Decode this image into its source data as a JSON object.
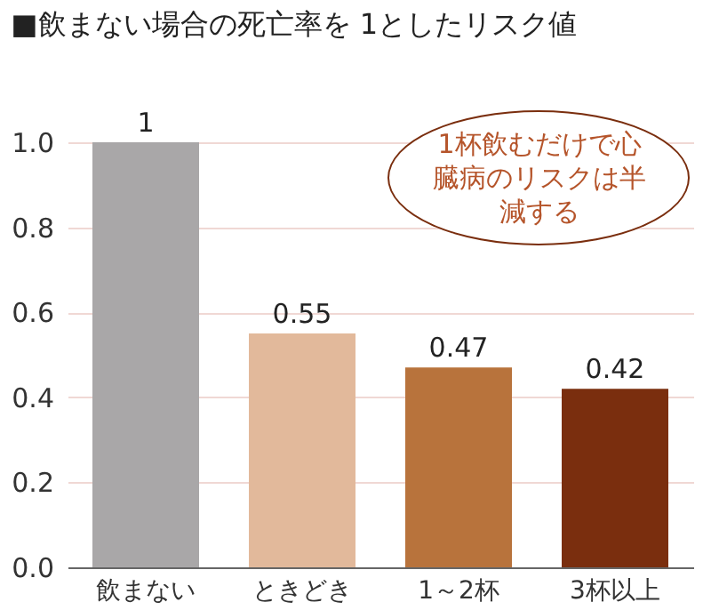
{
  "chart_data": {
    "type": "bar",
    "title": "■飲まない場合の死亡率を 1としたリスク値",
    "categories": [
      "飲まない",
      "ときどき",
      "1～2杯",
      "3杯以上"
    ],
    "values": [
      1,
      0.55,
      0.47,
      0.42
    ],
    "colors": [
      "#a9a7a8",
      "#e2b99b",
      "#b8733c",
      "#7a2e0e"
    ],
    "ylim": [
      0,
      1
    ],
    "yticks": [
      {
        "value": 0,
        "label": "0.0"
      },
      {
        "value": 0.2,
        "label": "0.2"
      },
      {
        "value": 0.4,
        "label": "0.4"
      },
      {
        "value": 0.6,
        "label": "0.6"
      },
      {
        "value": 0.8,
        "label": "0.8"
      },
      {
        "value": 1,
        "label": "1.0"
      }
    ],
    "grid": "y",
    "data_labels": true,
    "annotations": [
      "1杯飲むだけで心臓病のリスクは半減する"
    ]
  }
}
